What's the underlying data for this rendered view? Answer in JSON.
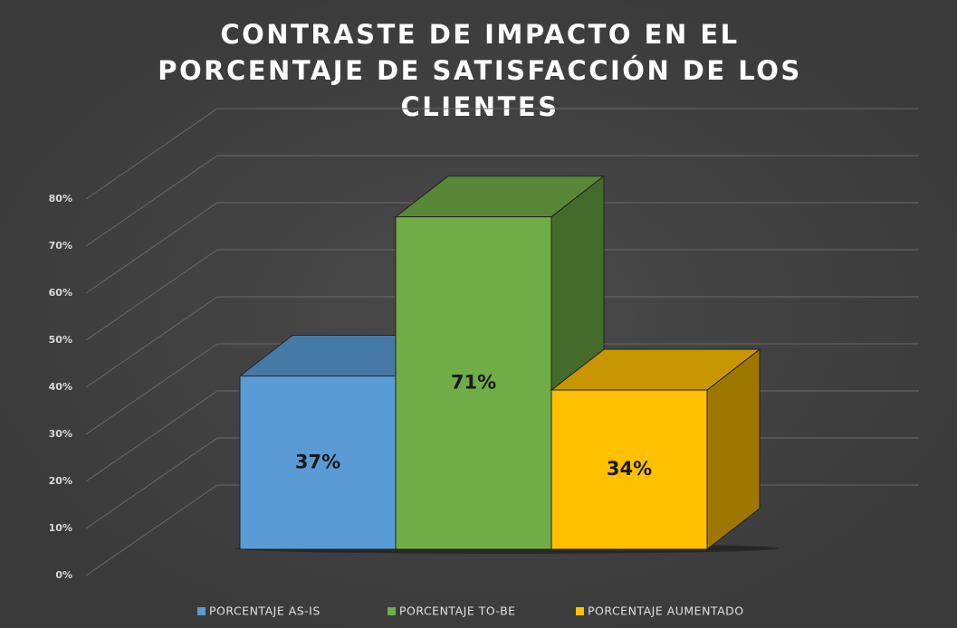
{
  "chart_data": {
    "type": "bar3d",
    "title": "CONTRASTE DE IMPACTO EN EL PORCENTAJE DE SATISFACCIÓN DE LOS CLIENTES",
    "categories": [
      null
    ],
    "series": [
      {
        "name": "PORCENTAJE AS-IS",
        "color": "#5b9bd5",
        "values": [
          37
        ],
        "value_labels": [
          "37%"
        ]
      },
      {
        "name": "PORCENTAJE TO-BE",
        "color": "#70ad47",
        "values": [
          71
        ],
        "value_labels": [
          "71%"
        ]
      },
      {
        "name": "PORCENTAJE AUMENTADO",
        "color": "#ffc000",
        "values": [
          34
        ],
        "value_labels": [
          "34%"
        ]
      }
    ],
    "ylim": [
      0,
      80
    ],
    "yticks": [
      {
        "value": 0,
        "label": "0%"
      },
      {
        "value": 10,
        "label": "10%"
      },
      {
        "value": 20,
        "label": "20%"
      },
      {
        "value": 30,
        "label": "30%"
      },
      {
        "value": 40,
        "label": "40%"
      },
      {
        "value": 50,
        "label": "50%"
      },
      {
        "value": 60,
        "label": "60%"
      },
      {
        "value": 70,
        "label": "70%"
      },
      {
        "value": 80,
        "label": "80%"
      }
    ],
    "grid": true,
    "legend": "bottom"
  }
}
